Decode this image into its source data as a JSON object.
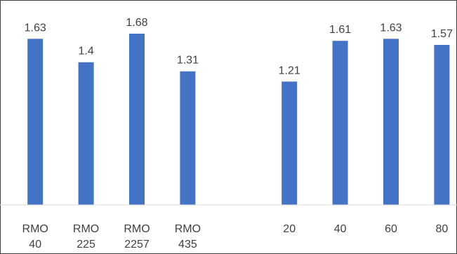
{
  "chart_data": {
    "type": "bar",
    "categories": [
      [
        "RMO",
        "40"
      ],
      [
        "RMO",
        "225"
      ],
      [
        "RMO",
        "2257"
      ],
      [
        "RMO",
        "435"
      ],
      [
        ""
      ],
      [
        "20"
      ],
      [
        "40"
      ],
      [
        "60"
      ],
      [
        "80"
      ]
    ],
    "values": [
      1.63,
      1.4,
      1.68,
      1.31,
      null,
      1.21,
      1.61,
      1.63,
      1.57
    ],
    "data_labels": [
      "1.63",
      "1.4",
      "1.68",
      "1.31",
      "",
      "1.21",
      "1.61",
      "1.63",
      "1.57"
    ],
    "ylim": [
      0,
      1.8
    ],
    "grid": false,
    "legend": "none",
    "title": "",
    "xlabel": "",
    "ylabel": "",
    "colors": {
      "bar": "#4472C4",
      "axis": "#D9D9D9",
      "border": "#404040",
      "text": "#404040"
    }
  }
}
